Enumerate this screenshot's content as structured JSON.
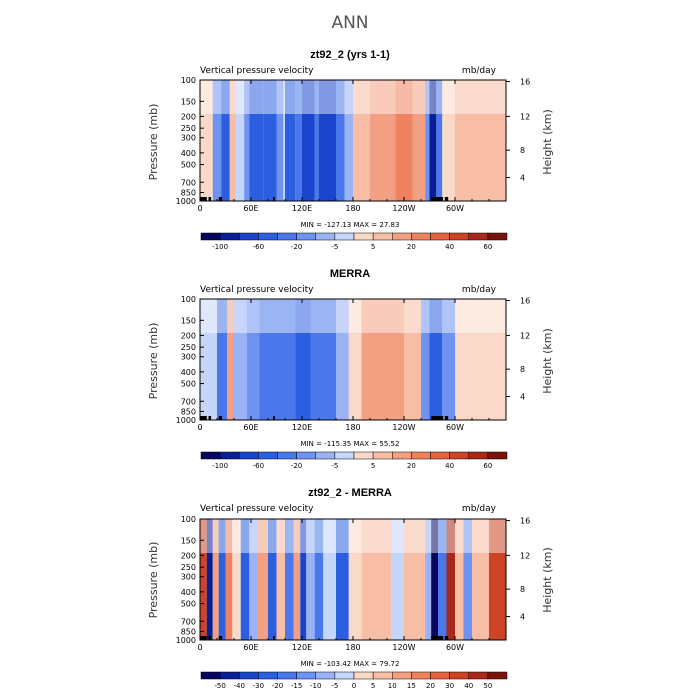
{
  "figure_title": "ANN",
  "colors": {
    "scale": [
      "#06065e",
      "#0a1e99",
      "#1a44cc",
      "#2c5fe0",
      "#4a78ea",
      "#6f93f0",
      "#9bb2f5",
      "#c4d6f9",
      "#fbd9c8",
      "#f8bda5",
      "#f3a082",
      "#ee825f",
      "#e4623d",
      "#cc4425",
      "#a8281a",
      "#78140c"
    ]
  },
  "chart_data": [
    {
      "type": "heatmap",
      "title": "zt92_2 (yrs 1-1)",
      "left_label": "Vertical pressure velocity",
      "right_label": "mb/day",
      "ylabel": "Pressure (mb)",
      "y2label": "Height (km)",
      "x_tick_labels": [
        "0",
        "60E",
        "120E",
        "180",
        "120W",
        "60W"
      ],
      "x_ticks_lon": [
        0,
        60,
        120,
        180,
        240,
        300
      ],
      "xlim": [
        0,
        360
      ],
      "y_tick_labels": [
        "100",
        "150",
        "200",
        "250",
        "300",
        "400",
        "500",
        "700",
        "850",
        "1000"
      ],
      "y_ticks_p": [
        100,
        150,
        200,
        250,
        300,
        400,
        500,
        700,
        850,
        1000
      ],
      "ylim": [
        100,
        1000
      ],
      "y2_tick_labels": [
        "4",
        "8",
        "12",
        "16"
      ],
      "y2_ticks_p": [
        640,
        380,
        200,
        103
      ],
      "stats_text": "MIN = -127.13   MAX =  27.83",
      "min": -127.13,
      "max": 27.83,
      "colorbar_labels": [
        "-100",
        "-60",
        "-20",
        "-5",
        "5",
        "20",
        "40",
        "60"
      ],
      "colorbar_levels": [
        -120,
        -100,
        -80,
        -60,
        -40,
        -20,
        -10,
        -5,
        0,
        5,
        10,
        20,
        30,
        40,
        50,
        60,
        70
      ],
      "bands_lon_level": [
        [
          0,
          15,
          3
        ],
        [
          15,
          25,
          -20
        ],
        [
          25,
          35,
          -50
        ],
        [
          35,
          42,
          8
        ],
        [
          42,
          52,
          -5
        ],
        [
          52,
          58,
          -20
        ],
        [
          58,
          75,
          -60
        ],
        [
          75,
          90,
          -45
        ],
        [
          90,
          98,
          -20
        ],
        [
          98,
          100,
          -5
        ],
        [
          100,
          112,
          -55
        ],
        [
          112,
          120,
          -30
        ],
        [
          120,
          135,
          -70
        ],
        [
          135,
          140,
          -25
        ],
        [
          140,
          160,
          -65
        ],
        [
          160,
          170,
          -40
        ],
        [
          170,
          180,
          -8
        ],
        [
          180,
          200,
          6
        ],
        [
          200,
          230,
          15
        ],
        [
          230,
          250,
          20
        ],
        [
          250,
          265,
          10
        ],
        [
          265,
          270,
          -20
        ],
        [
          270,
          278,
          -90
        ],
        [
          278,
          285,
          -40
        ],
        [
          285,
          300,
          4
        ],
        [
          300,
          320,
          8
        ],
        [
          320,
          360,
          5
        ]
      ]
    },
    {
      "type": "heatmap",
      "title": "MERRA",
      "left_label": "Vertical pressure velocity",
      "right_label": "mb/day",
      "ylabel": "Pressure (mb)",
      "y2label": "Height (km)",
      "x_tick_labels": [
        "0",
        "60E",
        "120E",
        "180",
        "120W",
        "60W"
      ],
      "x_ticks_lon": [
        0,
        60,
        120,
        180,
        240,
        300
      ],
      "xlim": [
        0,
        360
      ],
      "y_tick_labels": [
        "100",
        "150",
        "200",
        "250",
        "300",
        "400",
        "500",
        "700",
        "850",
        "1000"
      ],
      "y_ticks_p": [
        100,
        150,
        200,
        250,
        300,
        400,
        500,
        700,
        850,
        1000
      ],
      "ylim": [
        100,
        1000
      ],
      "y2_tick_labels": [
        "4",
        "8",
        "12",
        "16"
      ],
      "y2_ticks_p": [
        640,
        380,
        200,
        103
      ],
      "stats_text": "MIN = -115.35   MAX =  55.52",
      "min": -115.35,
      "max": 55.52,
      "colorbar_labels": [
        "-100",
        "-60",
        "-20",
        "-5",
        "5",
        "20",
        "40",
        "60"
      ],
      "colorbar_levels": [
        -120,
        -100,
        -80,
        -60,
        -40,
        -20,
        -10,
        -5,
        0,
        5,
        10,
        20,
        30,
        40,
        50,
        60,
        70
      ],
      "bands_lon_level": [
        [
          0,
          20,
          -3
        ],
        [
          20,
          32,
          -25
        ],
        [
          32,
          40,
          10
        ],
        [
          40,
          55,
          -8
        ],
        [
          55,
          70,
          -15
        ],
        [
          70,
          100,
          -40
        ],
        [
          100,
          112,
          -30
        ],
        [
          112,
          130,
          -45
        ],
        [
          130,
          140,
          -25
        ],
        [
          140,
          160,
          -40
        ],
        [
          160,
          175,
          -10
        ],
        [
          175,
          190,
          3
        ],
        [
          190,
          240,
          15
        ],
        [
          240,
          260,
          8
        ],
        [
          260,
          270,
          -15
        ],
        [
          270,
          285,
          -50
        ],
        [
          285,
          300,
          -20
        ],
        [
          300,
          360,
          4
        ]
      ]
    },
    {
      "type": "heatmap",
      "title": "zt92_2 - MERRA",
      "left_label": "Vertical pressure velocity",
      "right_label": "mb/day",
      "ylabel": "Pressure (mb)",
      "y2label": "Height (km)",
      "x_tick_labels": [
        "0",
        "60E",
        "120E",
        "180",
        "120W",
        "60W"
      ],
      "x_ticks_lon": [
        0,
        60,
        120,
        180,
        240,
        300
      ],
      "xlim": [
        0,
        360
      ],
      "y_tick_labels": [
        "100",
        "150",
        "200",
        "250",
        "300",
        "400",
        "500",
        "700",
        "850",
        "1000"
      ],
      "y_ticks_p": [
        100,
        150,
        200,
        250,
        300,
        400,
        500,
        700,
        850,
        1000
      ],
      "ylim": [
        100,
        1000
      ],
      "y2_tick_labels": [
        "4",
        "8",
        "12",
        "16"
      ],
      "y2_ticks_p": [
        640,
        380,
        200,
        103
      ],
      "stats_text": "MIN = -103.42   MAX =  79.72",
      "min": -103.42,
      "max": 79.72,
      "colorbar_labels": [
        "-50",
        "-40",
        "-30",
        "-20",
        "-15",
        "-10",
        "-5",
        "0",
        "5",
        "10",
        "15",
        "20",
        "30",
        "40",
        "50"
      ],
      "colorbar_levels": [
        -60,
        -50,
        -40,
        -30,
        -20,
        -15,
        -10,
        -5,
        0,
        5,
        10,
        15,
        20,
        30,
        40,
        50,
        60
      ],
      "bands_lon_level": [
        [
          0,
          8,
          30
        ],
        [
          8,
          15,
          -45
        ],
        [
          15,
          22,
          10
        ],
        [
          22,
          30,
          -25
        ],
        [
          30,
          38,
          15
        ],
        [
          38,
          48,
          4
        ],
        [
          48,
          58,
          -30
        ],
        [
          58,
          68,
          -8
        ],
        [
          68,
          80,
          12
        ],
        [
          80,
          90,
          -30
        ],
        [
          90,
          100,
          8
        ],
        [
          100,
          110,
          -20
        ],
        [
          110,
          118,
          10
        ],
        [
          118,
          125,
          -35
        ],
        [
          125,
          135,
          -10
        ],
        [
          135,
          145,
          -20
        ],
        [
          145,
          160,
          -5
        ],
        [
          160,
          175,
          -25
        ],
        [
          175,
          190,
          3
        ],
        [
          190,
          225,
          6
        ],
        [
          225,
          240,
          -3
        ],
        [
          240,
          265,
          5
        ],
        [
          265,
          272,
          -8
        ],
        [
          272,
          280,
          -55
        ],
        [
          280,
          290,
          -20
        ],
        [
          290,
          300,
          40
        ],
        [
          300,
          310,
          5
        ],
        [
          310,
          320,
          -15
        ],
        [
          320,
          340,
          5
        ],
        [
          340,
          360,
          35
        ]
      ]
    }
  ]
}
